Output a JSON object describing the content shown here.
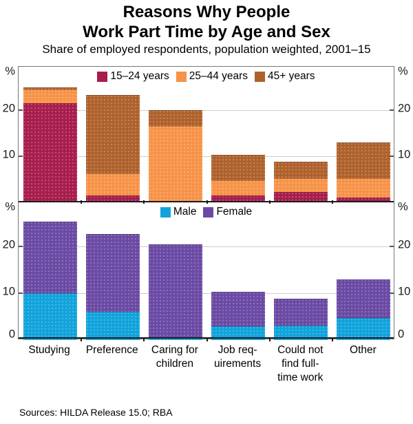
{
  "title": {
    "line1": "Reasons Why People",
    "line2": "Work Part Time by Age and Sex"
  },
  "subtitle": "Share of employed respondents, population weighted, 2001–15",
  "source": "Sources: HILDA Release 15.0; RBA",
  "axis": {
    "unit_label": "%",
    "tick_labels": [
      "20",
      "10"
    ],
    "tick_values": [
      20,
      10
    ],
    "zero_label": "0",
    "ymax": 29.5,
    "grid": true
  },
  "colors": {
    "age_15_24": "#A81C4E",
    "age_25_44": "#F79348",
    "age_45_plus": "#AF612C",
    "male": "#11A3DC",
    "female": "#6A4AA4",
    "gridline": "#cccccc",
    "axis_line": "#1a1a1a"
  },
  "categories_full": [
    "Studying",
    "Preference",
    "Caring for children",
    "Job requirements",
    "Could not find full-time work",
    "Other"
  ],
  "category_label_lines": [
    [
      "Studying"
    ],
    [
      "Preference"
    ],
    [
      "Caring for",
      "children"
    ],
    [
      "Job req-",
      "uirements"
    ],
    [
      "Could not",
      "find full-",
      "time work"
    ],
    [
      "Other"
    ]
  ],
  "chart_data": [
    {
      "type": "bar",
      "stacked": true,
      "panel": "age",
      "title": "",
      "xlabel": "",
      "ylabel": "%",
      "ylim": [
        0,
        29.5
      ],
      "grid": true,
      "legend_position": "top-center",
      "categories": [
        "Studying",
        "Preference",
        "Caring for children",
        "Job requirements",
        "Could not find full-time work",
        "Other"
      ],
      "series": [
        {
          "name": "15–24 years",
          "color": "#A81C4E",
          "values": [
            21.5,
            1.5,
            0.3,
            1.5,
            2.3,
            1.1
          ]
        },
        {
          "name": "25–44 years",
          "color": "#F79348",
          "values": [
            3.0,
            4.8,
            16.3,
            3.3,
            2.9,
            4.1
          ]
        },
        {
          "name": "45+ years",
          "color": "#AF612C",
          "values": [
            0.5,
            17.0,
            3.4,
            5.5,
            3.6,
            7.8
          ]
        }
      ],
      "totals": [
        25.0,
        23.3,
        20.0,
        10.3,
        8.8,
        13.0
      ]
    },
    {
      "type": "bar",
      "stacked": true,
      "panel": "sex",
      "title": "",
      "xlabel": "",
      "ylabel": "%",
      "ylim": [
        0,
        29.5
      ],
      "grid": true,
      "legend_position": "top-center",
      "categories": [
        "Studying",
        "Preference",
        "Caring for children",
        "Job requirements",
        "Could not find full-time work",
        "Other"
      ],
      "series": [
        {
          "name": "Male",
          "color": "#11A3DC",
          "values": [
            10.0,
            6.0,
            0.4,
            3.0,
            3.1,
            4.7
          ]
        },
        {
          "name": "Female",
          "color": "#6A4AA4",
          "values": [
            15.3,
            16.7,
            20.1,
            7.3,
            5.7,
            8.3
          ]
        }
      ],
      "totals": [
        25.3,
        22.7,
        20.5,
        10.3,
        8.8,
        13.0
      ]
    }
  ]
}
